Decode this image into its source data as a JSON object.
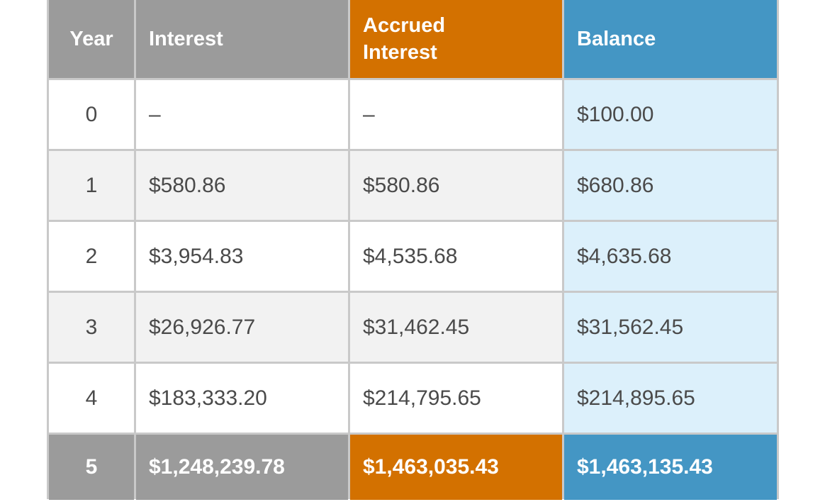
{
  "header": {
    "year": "Year",
    "interest": "Interest",
    "accrued_line1": "Accrued",
    "accrued_line2": "Interest",
    "balance": "Balance"
  },
  "rows": [
    {
      "year": "0",
      "interest": "–",
      "accrued": "–",
      "balance": "$100.00"
    },
    {
      "year": "1",
      "interest": "$580.86",
      "accrued": "$580.86",
      "balance": "$680.86"
    },
    {
      "year": "2",
      "interest": "$3,954.83",
      "accrued": "$4,535.68",
      "balance": "$4,635.68"
    },
    {
      "year": "3",
      "interest": "$26,926.77",
      "accrued": "$31,462.45",
      "balance": "$31,562.45"
    },
    {
      "year": "4",
      "interest": "$183,333.20",
      "accrued": "$214,795.65",
      "balance": "$214,895.65"
    },
    {
      "year": "5",
      "interest": "$1,248,239.78",
      "accrued": "$1,463,035.43",
      "balance": "$1,463,135.43"
    }
  ],
  "colors": {
    "header_gray": "#9b9b9b",
    "accrued_orange": "#d37100",
    "balance_blue": "#4496c4",
    "balance_cell_light_blue": "#dcf0fb"
  }
}
